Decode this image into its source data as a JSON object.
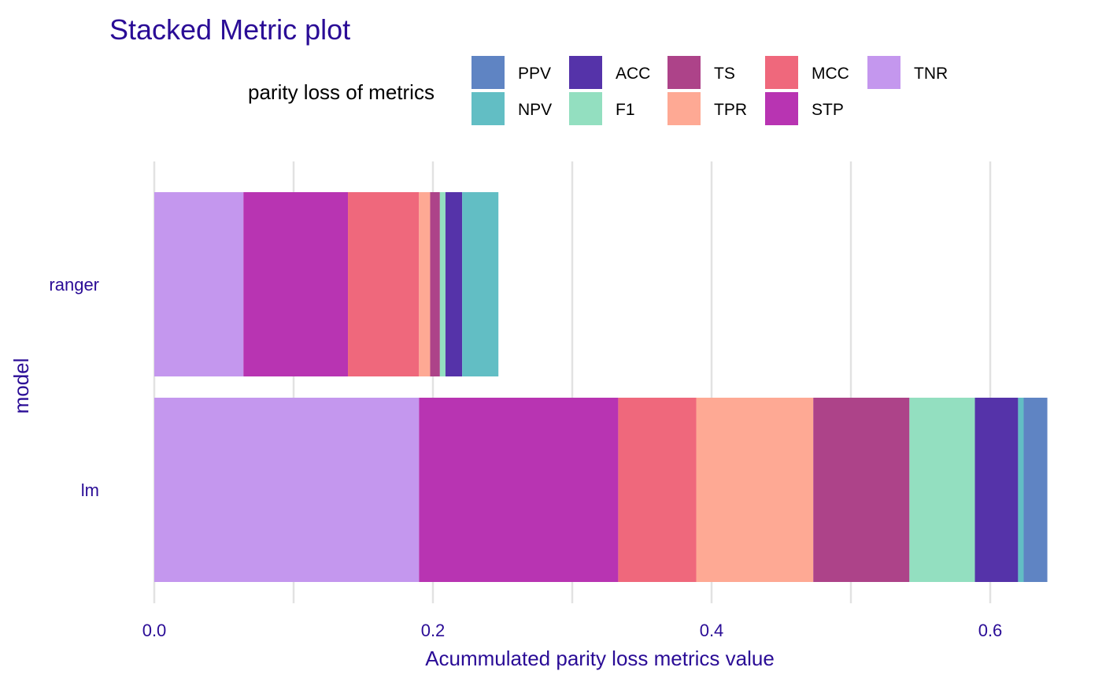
{
  "chart_data": {
    "type": "bar",
    "orientation": "horizontal",
    "stacked": true,
    "title": "Stacked Metric plot",
    "xlabel": "Acummulated parity loss metrics value",
    "ylabel": "model",
    "xlim": [
      0,
      0.64
    ],
    "xticks": [
      "0.0",
      "0.2",
      "0.4",
      "0.6"
    ],
    "xtick_values": [
      0,
      0.2,
      0.4,
      0.6
    ],
    "grid": true,
    "legend": {
      "title": "parity loss of metrics",
      "position": "top",
      "rows": 2
    },
    "categories": [
      "ranger",
      "lm"
    ],
    "stack_order": [
      "TNR",
      "STP",
      "MCC",
      "TPR",
      "TS",
      "F1",
      "ACC",
      "NPV",
      "PPV"
    ],
    "series": [
      {
        "name": "PPV",
        "color": "#5f84c3",
        "values": [
          0.0,
          0.017
        ]
      },
      {
        "name": "NPV",
        "color": "#62bec4",
        "values": [
          0.026,
          0.004
        ]
      },
      {
        "name": "ACC",
        "color": "#5533a9",
        "values": [
          0.012,
          0.031
        ]
      },
      {
        "name": "F1",
        "color": "#93dfc0",
        "values": [
          0.004,
          0.047
        ]
      },
      {
        "name": "TS",
        "color": "#ad4389",
        "values": [
          0.007,
          0.069
        ]
      },
      {
        "name": "TPR",
        "color": "#fea994",
        "values": [
          0.008,
          0.084
        ]
      },
      {
        "name": "MCC",
        "color": "#ef687c",
        "values": [
          0.051,
          0.056
        ]
      },
      {
        "name": "STP",
        "color": "#b834b2",
        "values": [
          0.075,
          0.143
        ]
      },
      {
        "name": "TNR",
        "color": "#c497ee",
        "values": [
          0.064,
          0.19
        ]
      }
    ]
  }
}
